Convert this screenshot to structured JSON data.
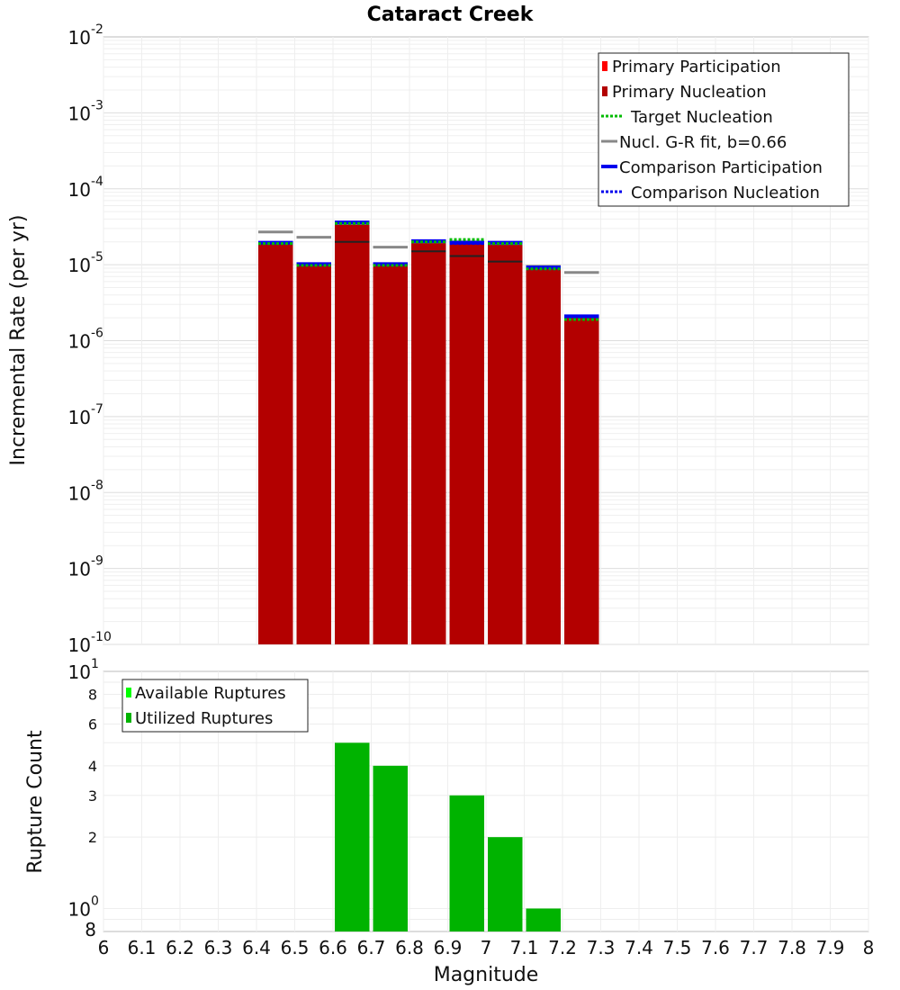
{
  "chart_data": [
    {
      "type": "bar",
      "title": "Cataract Creek",
      "xlabel": "",
      "ylabel": "Incremental Rate (per yr)",
      "yscale": "log",
      "xlim": [
        6,
        8
      ],
      "ylim": [
        1e-10,
        0.01
      ],
      "y_ticks": [
        {
          "base": "10",
          "exp": "-10"
        },
        {
          "base": "10",
          "exp": "-9"
        },
        {
          "base": "10",
          "exp": "-8"
        },
        {
          "base": "10",
          "exp": "-7"
        },
        {
          "base": "10",
          "exp": "-6"
        },
        {
          "base": "10",
          "exp": "-5"
        },
        {
          "base": "10",
          "exp": "-4"
        },
        {
          "base": "10",
          "exp": "-3"
        },
        {
          "base": "10",
          "exp": "-2"
        }
      ],
      "grid": true,
      "legend_position": "top-right",
      "bin_width": 0.1,
      "x": [
        6.45,
        6.55,
        6.65,
        6.75,
        6.85,
        6.95,
        7.05,
        7.15,
        7.25
      ],
      "series": [
        {
          "name": "Primary Participation",
          "style": "bar",
          "color": "#ff0000",
          "values": [
            1.9e-05,
            9.8e-06,
            3.5e-05,
            9.8e-06,
            2e-05,
            1.9e-05,
            1.9e-05,
            8.8e-06,
            2e-06
          ]
        },
        {
          "name": "Primary Nucleation",
          "style": "bar",
          "color": "#b30000",
          "values": [
            1.9e-05,
            9.8e-06,
            3.5e-05,
            9.8e-06,
            2e-05,
            1.9e-05,
            1.9e-05,
            8.8e-06,
            2e-06
          ]
        },
        {
          "name": "Target Nucleation",
          "style": "dotted",
          "color": "#00bb00",
          "values": [
            1.9e-05,
            9.8e-06,
            3.5e-05,
            9.8e-06,
            2e-05,
            2.15e-05,
            1.9e-05,
            8.8e-06,
            1.9e-06
          ]
        },
        {
          "name": "Nucl. G-R fit, b=0.66",
          "style": "solid",
          "color": "#888888",
          "values": [
            2.7e-05,
            2.3e-05,
            3.5e-05,
            1.7e-05,
            2e-05,
            2e-05,
            1.9e-05,
            9.5e-06,
            7.9e-06
          ]
        },
        {
          "name": "Comparison Participation",
          "style": "solid",
          "color": "#0000ee",
          "values": [
            1.95e-05,
            1.02e-05,
            3.6e-05,
            1.02e-05,
            2.05e-05,
            1.95e-05,
            1.95e-05,
            9.2e-06,
            2.1e-06
          ]
        },
        {
          "name": "Comparison Nucleation",
          "style": "dotted",
          "color": "#0000ee",
          "values": [
            1.9e-05,
            9.8e-06,
            3.5e-05,
            9.8e-06,
            2e-05,
            1.9e-05,
            1.9e-05,
            8.8e-06,
            2e-06
          ]
        }
      ],
      "dark_markers": {
        "color": "#222222",
        "x": [
          6.65,
          6.85,
          6.95,
          7.05
        ],
        "values": [
          2e-05,
          1.5e-05,
          1.3e-05,
          1.1e-05
        ]
      }
    },
    {
      "type": "bar",
      "title": "",
      "xlabel": "Magnitude",
      "ylabel": "Rupture Count",
      "yscale": "log",
      "xlim": [
        6,
        8
      ],
      "ylim": [
        0.8,
        10
      ],
      "y_ticks": [
        {
          "value": 10,
          "base": "10",
          "exp": "1"
        },
        {
          "value": 8,
          "label": "8"
        },
        {
          "value": 6,
          "label": "6"
        },
        {
          "value": 4,
          "label": "4"
        },
        {
          "value": 3,
          "label": "3"
        },
        {
          "value": 2,
          "label": "2"
        },
        {
          "value": 1,
          "base": "10",
          "exp": "0"
        },
        {
          "value": 0.8,
          "label": "8"
        }
      ],
      "x_ticks": [
        "6",
        "6.1",
        "6.2",
        "6.3",
        "6.4",
        "6.5",
        "6.6",
        "6.7",
        "6.8",
        "6.9",
        "7",
        "7.1",
        "7.2",
        "7.3",
        "7.4",
        "7.5",
        "7.6",
        "7.7",
        "7.8",
        "7.9",
        "8"
      ],
      "grid": true,
      "legend_position": "top-left",
      "bin_width": 0.1,
      "x": [
        6.65,
        6.75,
        6.95,
        7.05,
        7.15
      ],
      "series": [
        {
          "name": "Available Ruptures",
          "style": "bar",
          "color": "#00ff00",
          "values": [
            5,
            4,
            3,
            2,
            1
          ]
        },
        {
          "name": "Utilized Ruptures",
          "style": "bar",
          "color": "#00b300",
          "values": [
            5,
            4,
            3,
            2,
            1
          ]
        }
      ]
    }
  ]
}
